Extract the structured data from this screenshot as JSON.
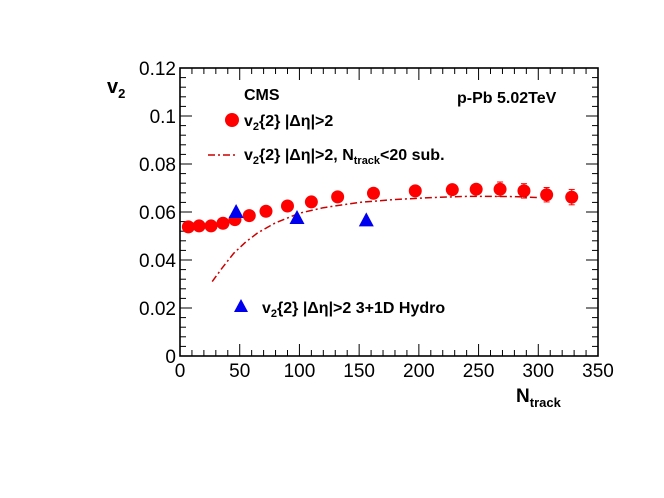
{
  "chart_data": {
    "type": "scatter",
    "title": "",
    "xlabel": "N",
    "xlabel_sub": "track",
    "ylabel": "v",
    "ylabel_sub": "2",
    "xlim": [
      0,
      350
    ],
    "ylim": [
      0,
      0.12
    ],
    "x_ticks": [
      0,
      50,
      100,
      150,
      200,
      250,
      300,
      350
    ],
    "x_tick_labels": [
      "0",
      "50",
      "100",
      "150",
      "200",
      "250",
      "300",
      "350"
    ],
    "y_ticks": [
      0,
      0.02,
      0.04,
      0.06,
      0.08,
      0.1,
      0.12
    ],
    "y_tick_labels": [
      "0",
      "0.02",
      "0.04",
      "0.06",
      "0.08",
      "0.1",
      "0.12"
    ],
    "annotations": {
      "experiment": "CMS",
      "system": "p-Pb 5.02TeV"
    },
    "series": [
      {
        "name": "v2{2} |Δη|>2",
        "legend": {
          "main": "v",
          "sub": "2",
          "rest": "{2}  |Δη|>2"
        },
        "style": "circle",
        "color": "#ff0000",
        "x": [
          7,
          16,
          26,
          36,
          46,
          58,
          72,
          90,
          110,
          132,
          162,
          197,
          228,
          248,
          268,
          288,
          307,
          328
        ],
        "y": [
          0.0538,
          0.0542,
          0.0542,
          0.0553,
          0.0568,
          0.0585,
          0.0603,
          0.0625,
          0.0642,
          0.0663,
          0.0678,
          0.0688,
          0.0693,
          0.0695,
          0.0695,
          0.0688,
          0.0672,
          0.0662
        ],
        "yerr": [
          0.0005,
          0.0005,
          0.0005,
          0.0005,
          0.0005,
          0.0005,
          0.0005,
          0.0005,
          0.0005,
          0.0005,
          0.0008,
          0.0012,
          0.002,
          0.0025,
          0.003,
          0.003,
          0.003,
          0.0032
        ]
      },
      {
        "name": "v2{2} |Δη|>2, Ntrack<20 sub.",
        "legend": {
          "main": "v",
          "sub": "2",
          "rest": "{2}  |Δη|>2, N",
          "sub2": "track",
          "rest2": "<20  sub."
        },
        "style": "dash-dot-line",
        "color": "#cc0000",
        "x": [
          27,
          35,
          45,
          55,
          65,
          80,
          100,
          120,
          150,
          180,
          210,
          240,
          260,
          280,
          300
        ],
        "y": [
          0.031,
          0.0365,
          0.0428,
          0.0475,
          0.0513,
          0.0555,
          0.0595,
          0.0618,
          0.064,
          0.0652,
          0.066,
          0.0665,
          0.0665,
          0.0664,
          0.066
        ]
      },
      {
        "name": "v2{2} |Δη|>2 3+1D Hydro",
        "legend": {
          "main": "v",
          "sub": "2",
          "rest": "{2}  |Δη|>2   3+1D Hydro"
        },
        "style": "triangle",
        "color": "#0000ee",
        "x": [
          47,
          98,
          156
        ],
        "y": [
          0.06,
          0.0575,
          0.0565
        ]
      }
    ]
  }
}
